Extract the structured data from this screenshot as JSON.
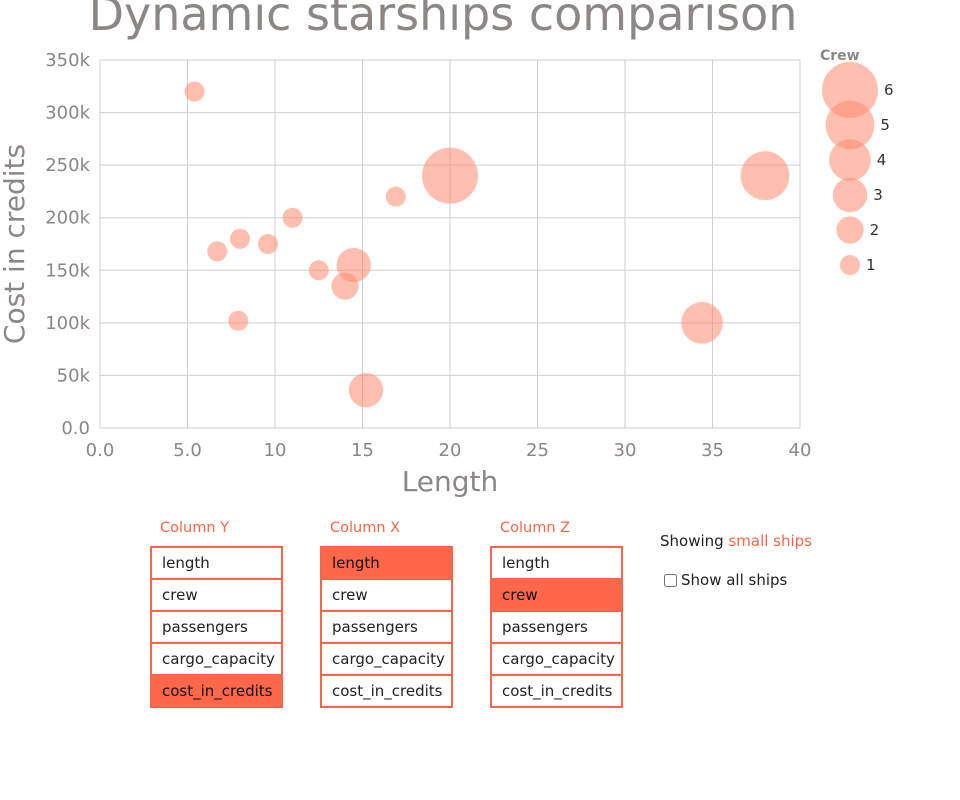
{
  "chart_data": {
    "type": "scatter",
    "title": "Dynamic starships comparison",
    "xlabel": "Length",
    "ylabel": "Cost in credits",
    "xlim": [
      0,
      40
    ],
    "ylim": [
      0,
      350000
    ],
    "xticks": [
      "0.0",
      "5.0",
      "10",
      "15",
      "20",
      "25",
      "30",
      "35",
      "40"
    ],
    "yticks": [
      "0.0",
      "50k",
      "100k",
      "150k",
      "200k",
      "250k",
      "300k",
      "350k"
    ],
    "grid": true,
    "bubble_color": "#ff8a70",
    "size_legend": {
      "title": "Crew",
      "values": [
        6,
        5,
        4,
        3,
        2,
        1
      ]
    },
    "points": [
      {
        "x": 5.4,
        "y": 320000,
        "size": 1
      },
      {
        "x": 6.7,
        "y": 168000,
        "size": 1
      },
      {
        "x": 7.9,
        "y": 102000,
        "size": 1
      },
      {
        "x": 8.0,
        "y": 180000,
        "size": 1
      },
      {
        "x": 9.6,
        "y": 175000,
        "size": 1
      },
      {
        "x": 11.0,
        "y": 200000,
        "size": 1
      },
      {
        "x": 12.5,
        "y": 150000,
        "size": 1
      },
      {
        "x": 14.0,
        "y": 135000,
        "size": 2
      },
      {
        "x": 14.5,
        "y": 155000,
        "size": 3
      },
      {
        "x": 15.2,
        "y": 36000,
        "size": 3
      },
      {
        "x": 16.9,
        "y": 220000,
        "size": 1
      },
      {
        "x": 20.0,
        "y": 240000,
        "size": 6
      },
      {
        "x": 34.4,
        "y": 100000,
        "size": 4
      },
      {
        "x": 38.0,
        "y": 240000,
        "size": 5
      }
    ]
  },
  "selectors": {
    "column_y": {
      "title": "Column Y",
      "options": [
        "length",
        "crew",
        "passengers",
        "cargo_capacity",
        "cost_in_credits"
      ],
      "selected": 4
    },
    "column_x": {
      "title": "Column X",
      "options": [
        "length",
        "crew",
        "passengers",
        "cargo_capacity",
        "cost_in_credits"
      ],
      "selected": 0
    },
    "column_z": {
      "title": "Column Z",
      "options": [
        "length",
        "crew",
        "passengers",
        "cargo_capacity",
        "cost_in_credits"
      ],
      "selected": 1
    }
  },
  "info": {
    "showing_prefix": "Showing",
    "showing_value": "small ships",
    "show_all_label": "Show all ships",
    "show_all_checked": false
  }
}
